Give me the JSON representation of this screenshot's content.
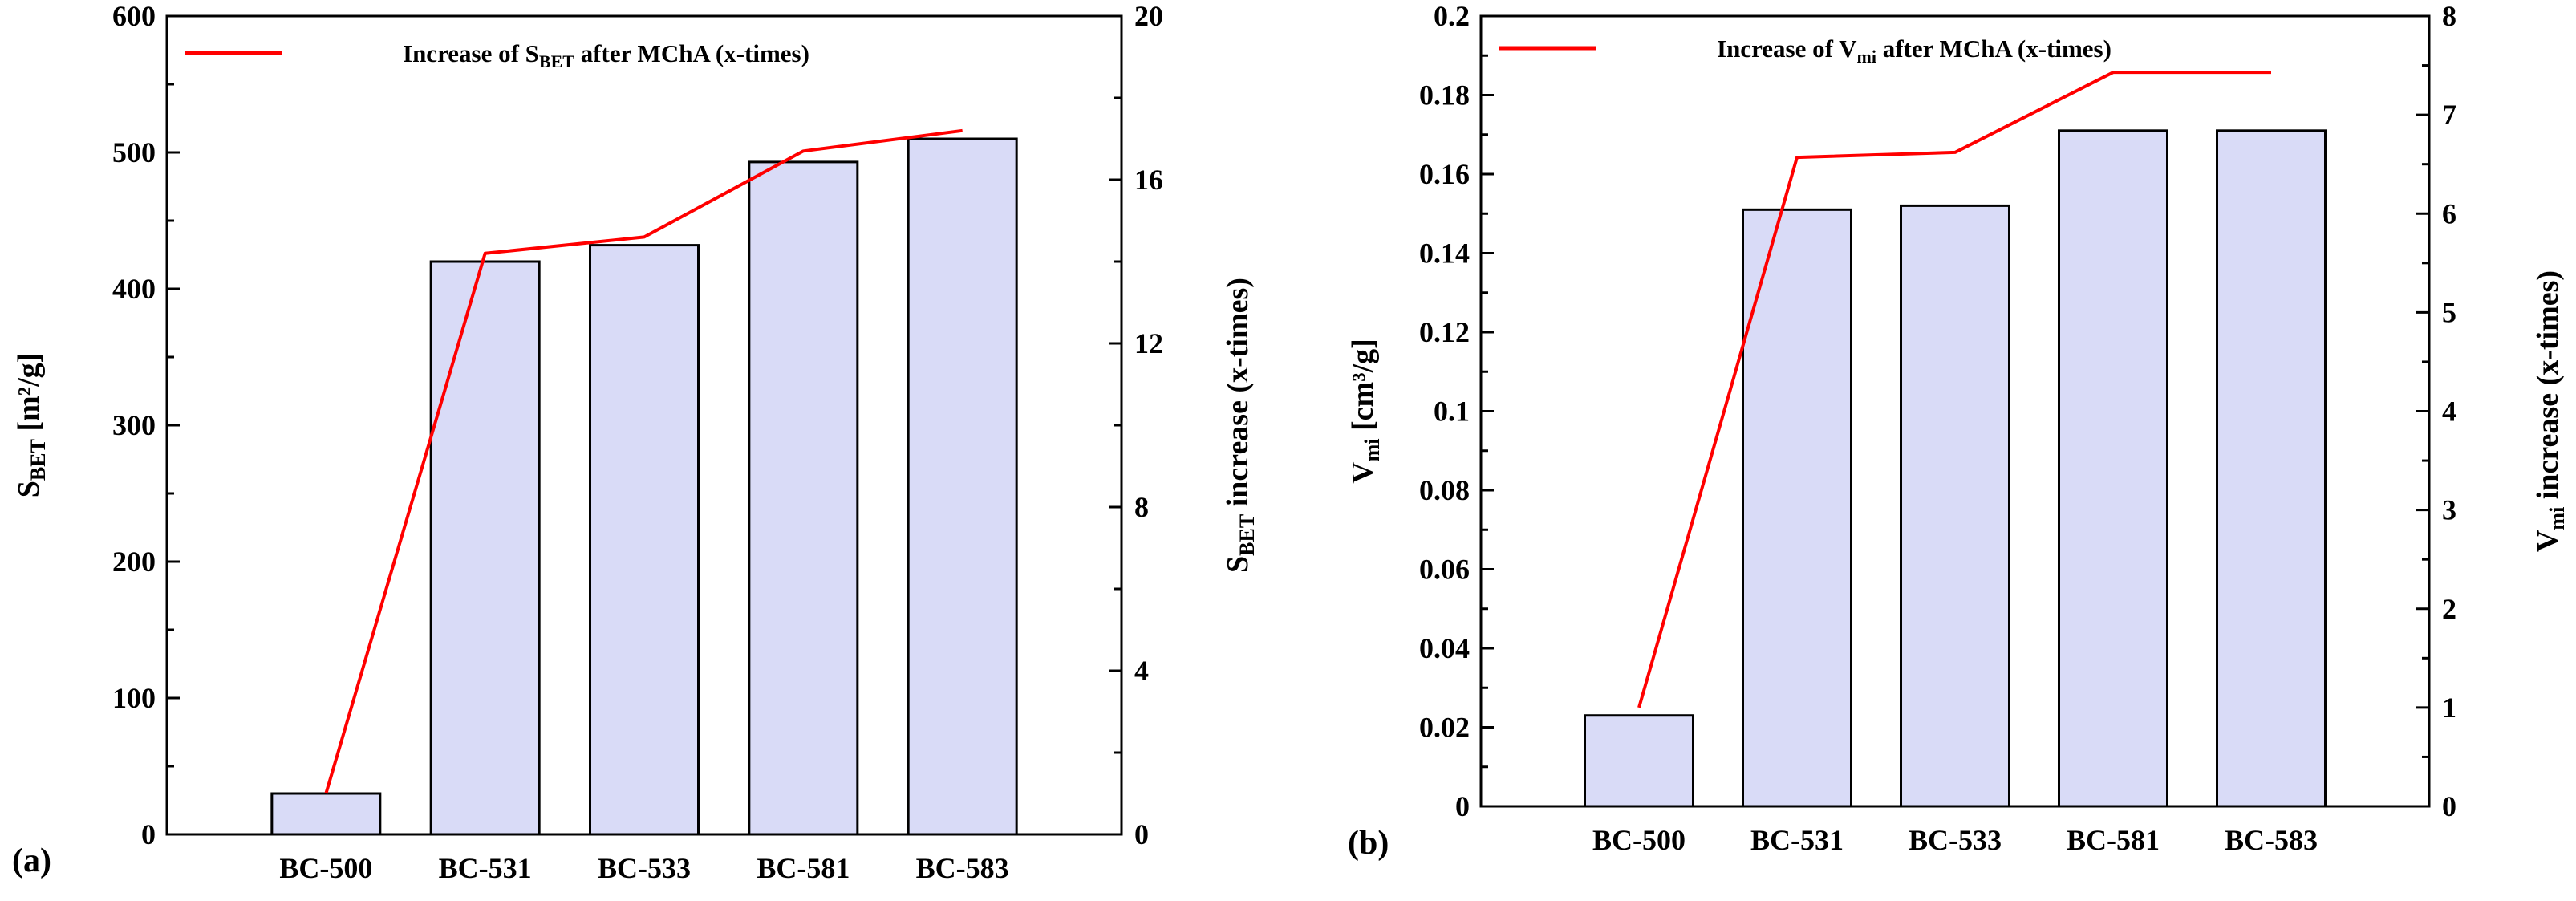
{
  "chart_data": [
    {
      "type": "bar+line",
      "panel_label": "(a)",
      "categories": [
        "BC-500",
        "BC-531",
        "BC-533",
        "BC-581",
        "BC-583"
      ],
      "bar_series": {
        "name": "SBET",
        "values": [
          30,
          420,
          432,
          493,
          510
        ]
      },
      "line_series": {
        "name": "Increase of SBET after MChA (x-times)",
        "values": [
          1,
          14.2,
          14.6,
          16.7,
          17.2
        ]
      },
      "legend": {
        "pre": "Increase of S",
        "sub": "BET",
        "post": " after MChA (x-times)"
      },
      "y_left": {
        "label_main": "S",
        "label_sub": "BET",
        "label_rest": " [m²/g]",
        "lim": [
          0,
          600
        ],
        "major_ticks": [
          0,
          100,
          200,
          300,
          400,
          500,
          600
        ],
        "tick_labels": [
          "0",
          "100",
          "200",
          "300",
          "400",
          "500",
          "600"
        ]
      },
      "y_right": {
        "label_main": "S",
        "label_sub": "BET",
        "label_rest": " increase (x-times)",
        "lim": [
          0,
          20
        ],
        "major_ticks": [
          0,
          4,
          8,
          12,
          16,
          20
        ],
        "tick_labels": [
          "0",
          "4",
          "8",
          "12",
          "16",
          "20"
        ]
      },
      "colors": {
        "bar_fill": "#d9dbf7",
        "bar_stroke": "#000000",
        "line": "#ff0000"
      }
    },
    {
      "type": "bar+line",
      "panel_label": "(b)",
      "categories": [
        "BC-500",
        "BC-531",
        "BC-533",
        "BC-581",
        "BC-583"
      ],
      "bar_series": {
        "name": "Vmi",
        "values": [
          0.023,
          0.151,
          0.152,
          0.171,
          0.171
        ]
      },
      "line_series": {
        "name": "Increase of Vmi after MChA (x-times)",
        "values": [
          1,
          6.57,
          6.62,
          7.43,
          7.43
        ]
      },
      "legend": {
        "pre": "Increase of V",
        "sub": "mi",
        "post": " after MChA (x-times)"
      },
      "y_left": {
        "label_main": "V",
        "label_sub": "mi",
        "label_rest": " [cm³/g]",
        "lim": [
          0,
          0.2
        ],
        "major_ticks": [
          0,
          0.02,
          0.04,
          0.06,
          0.08,
          0.1,
          0.12,
          0.14,
          0.16,
          0.18,
          0.2
        ],
        "tick_labels": [
          "0",
          "0.02",
          "0.04",
          "0.06",
          "0.08",
          "0.1",
          "0.12",
          "0.14",
          "0.16",
          "0.18",
          "0.2"
        ]
      },
      "y_right": {
        "label_main": "V",
        "label_sub": "mi",
        "label_rest": " increase (x-times)",
        "lim": [
          0,
          8
        ],
        "major_ticks": [
          0,
          1,
          2,
          3,
          4,
          5,
          6,
          7,
          8
        ],
        "tick_labels": [
          "0",
          "1",
          "2",
          "3",
          "4",
          "5",
          "6",
          "7",
          "8"
        ]
      },
      "colors": {
        "bar_fill": "#d9dbf7",
        "bar_stroke": "#000000",
        "line": "#ff0000"
      }
    }
  ]
}
